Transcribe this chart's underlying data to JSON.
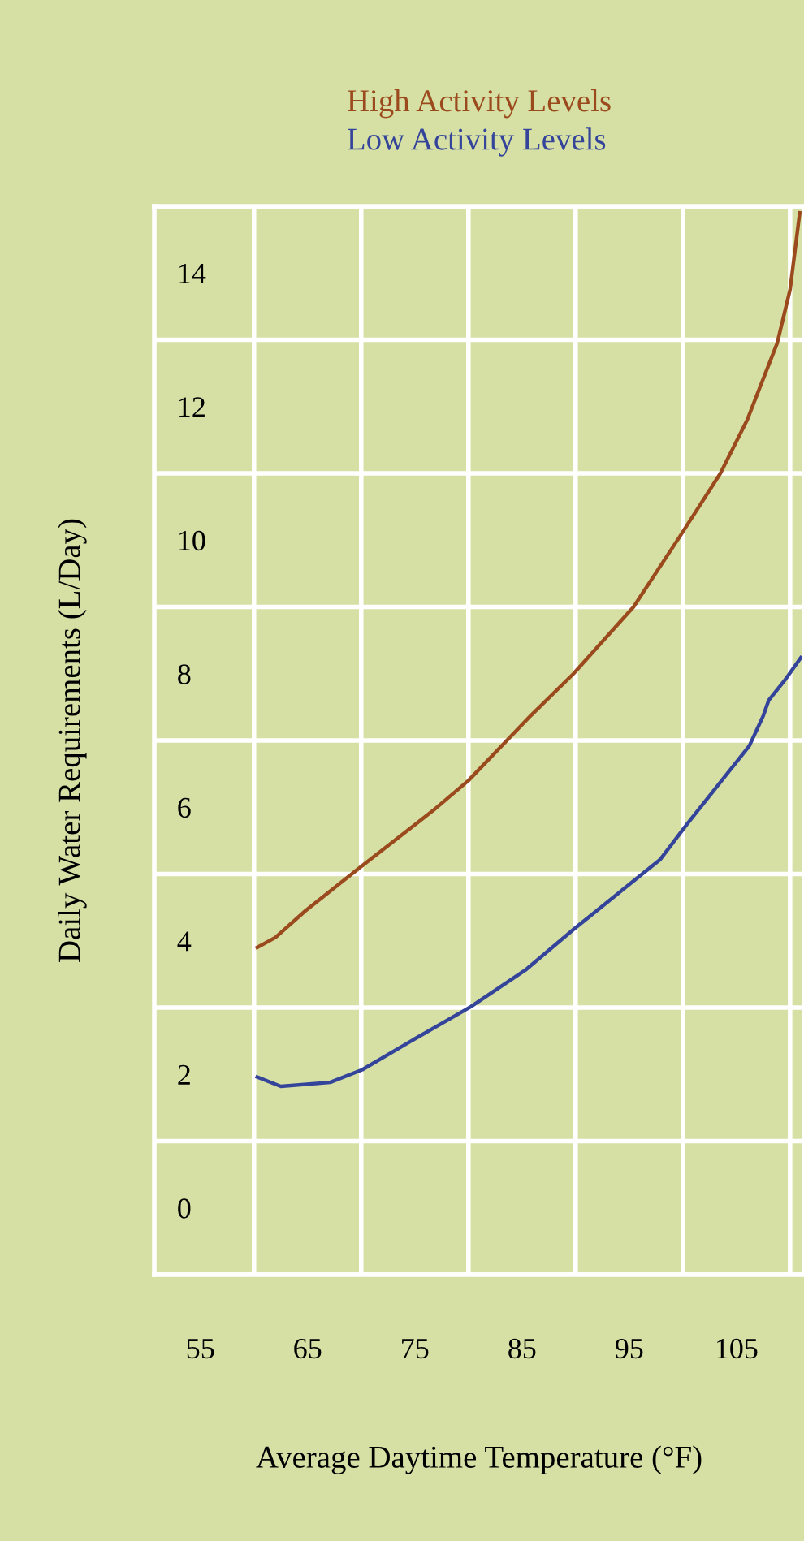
{
  "chart_data": {
    "type": "line",
    "xlabel": "Average Daytime Temperature (°F)",
    "ylabel": "Daily Water Requirements (L/Day)",
    "xlim": [
      50.7,
      111.3
    ],
    "ylim": [
      -1,
      15
    ],
    "xticks": [
      55,
      65,
      75,
      85,
      95,
      105
    ],
    "yticks": [
      0,
      2,
      4,
      6,
      8,
      10,
      12,
      14
    ],
    "grid": true,
    "legend": "top",
    "marker": "none",
    "line_style": "solid",
    "series": [
      {
        "name": "High Activity Levels",
        "color": "#9b4a1e",
        "x": [
          60.3,
          62.0,
          64.8,
          69.9,
          76.7,
          80.0,
          85.8,
          89.8,
          95.4,
          99.7,
          103.5,
          106.0,
          108.8,
          110.0,
          110.9
        ],
        "values": [
          3.9,
          4.05,
          4.45,
          5.1,
          5.95,
          6.4,
          7.37,
          8.0,
          9.0,
          10.05,
          11.0,
          11.8,
          12.95,
          13.75,
          14.9
        ]
      },
      {
        "name": "Low Activity Levels",
        "color": "#34449a",
        "x": [
          60.3,
          62.5,
          67.1,
          70.1,
          75.2,
          80.2,
          85.3,
          89.8,
          97.9,
          100.4,
          106.2,
          107.5,
          108.0,
          109.5,
          111.0
        ],
        "values": [
          1.96,
          1.82,
          1.88,
          2.07,
          2.55,
          3.01,
          3.56,
          4.17,
          5.22,
          5.75,
          6.92,
          7.37,
          7.6,
          7.9,
          8.24
        ]
      }
    ]
  }
}
